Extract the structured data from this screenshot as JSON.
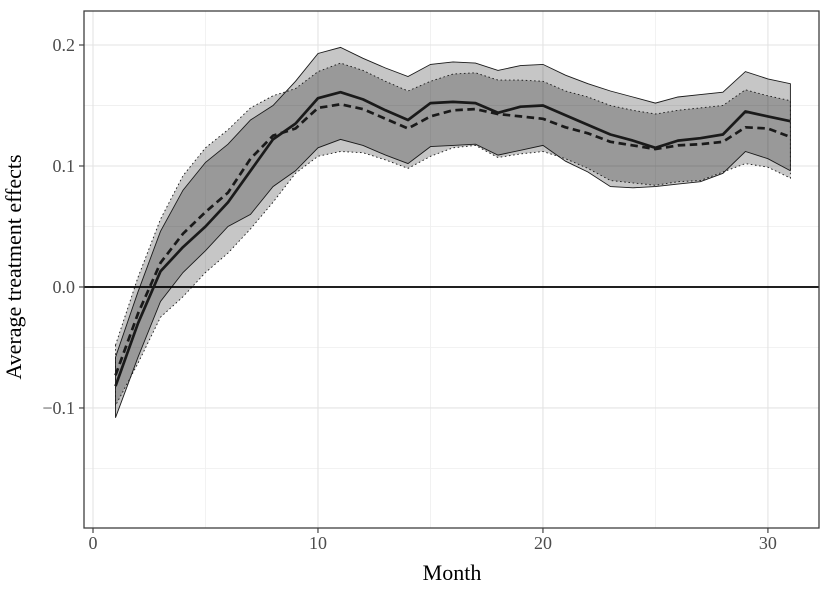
{
  "figure": {
    "kind": "statistical-line-chart",
    "background": "#ffffff"
  },
  "chart_data": {
    "type": "line",
    "title": "",
    "xlabel": "Month",
    "ylabel": "Average treatment effects",
    "legend": "none",
    "grid": true,
    "x": [
      1,
      2,
      3,
      4,
      5,
      6,
      7,
      8,
      9,
      10,
      11,
      12,
      13,
      14,
      15,
      16,
      17,
      18,
      19,
      20,
      21,
      22,
      23,
      24,
      25,
      26,
      27,
      28,
      29,
      30,
      31
    ],
    "series": [
      {
        "name": "att-estimate-solid",
        "line_style": "solid",
        "color": "#1a1a1a",
        "values": [
          -0.082,
          -0.03,
          0.013,
          0.033,
          0.05,
          0.07,
          0.096,
          0.122,
          0.135,
          0.156,
          0.161,
          0.155,
          0.146,
          0.138,
          0.152,
          0.153,
          0.152,
          0.144,
          0.149,
          0.15,
          0.142,
          0.134,
          0.126,
          0.121,
          0.115,
          0.121,
          0.123,
          0.126,
          0.145,
          0.141,
          0.137
        ],
        "band": {
          "edge_style": "solid",
          "upper": [
            -0.058,
            -0.004,
            0.046,
            0.08,
            0.103,
            0.118,
            0.138,
            0.15,
            0.17,
            0.193,
            0.198,
            0.189,
            0.181,
            0.174,
            0.184,
            0.186,
            0.185,
            0.179,
            0.183,
            0.184,
            0.175,
            0.168,
            0.162,
            0.157,
            0.152,
            0.157,
            0.159,
            0.161,
            0.178,
            0.172,
            0.168
          ],
          "lower": [
            -0.108,
            -0.058,
            -0.012,
            0.012,
            0.03,
            0.05,
            0.06,
            0.083,
            0.096,
            0.115,
            0.122,
            0.117,
            0.109,
            0.102,
            0.116,
            0.117,
            0.118,
            0.109,
            0.113,
            0.117,
            0.104,
            0.095,
            0.083,
            0.082,
            0.083,
            0.085,
            0.087,
            0.094,
            0.112,
            0.106,
            0.096
          ]
        }
      },
      {
        "name": "att-estimate-dashed",
        "line_style": "dashed",
        "color": "#1a1a1a",
        "values": [
          -0.073,
          -0.022,
          0.02,
          0.044,
          0.062,
          0.078,
          0.106,
          0.125,
          0.131,
          0.148,
          0.151,
          0.147,
          0.139,
          0.131,
          0.141,
          0.146,
          0.147,
          0.143,
          0.141,
          0.139,
          0.132,
          0.127,
          0.12,
          0.117,
          0.114,
          0.117,
          0.118,
          0.12,
          0.132,
          0.131,
          0.124
        ],
        "band": {
          "edge_style": "dotted",
          "upper": [
            -0.048,
            0.008,
            0.056,
            0.092,
            0.115,
            0.13,
            0.148,
            0.158,
            0.164,
            0.178,
            0.185,
            0.179,
            0.17,
            0.162,
            0.17,
            0.176,
            0.177,
            0.171,
            0.171,
            0.17,
            0.162,
            0.157,
            0.15,
            0.146,
            0.143,
            0.146,
            0.148,
            0.15,
            0.163,
            0.158,
            0.154
          ],
          "lower": [
            -0.098,
            -0.063,
            -0.025,
            -0.008,
            0.012,
            0.028,
            0.048,
            0.07,
            0.094,
            0.108,
            0.112,
            0.111,
            0.105,
            0.098,
            0.108,
            0.115,
            0.117,
            0.107,
            0.11,
            0.112,
            0.106,
            0.098,
            0.088,
            0.086,
            0.084,
            0.087,
            0.088,
            0.095,
            0.102,
            0.099,
            0.09
          ]
        }
      }
    ],
    "reference_line_y": 0,
    "xlim": [
      -0.4,
      32.27
    ],
    "ylim": [
      -0.1992,
      0.2281
    ],
    "x_ticks": [
      0,
      10,
      20,
      30
    ],
    "x_tick_labels": [
      "0",
      "10",
      "20",
      "30"
    ],
    "x_minor_ticks": [
      5,
      15,
      25
    ],
    "y_ticks": [
      -0.1,
      0.0,
      0.1,
      0.2
    ],
    "y_tick_labels": [
      "−0.1",
      "0.0",
      "0.1",
      "0.2"
    ],
    "y_minor_ticks": [
      -0.15,
      -0.05,
      0.05,
      0.15
    ],
    "colors": {
      "band_fill": "rgba(0,0,0,0.225)",
      "band_edge": "#1a1a1a",
      "line": "#1a1a1a",
      "zero_line": "#000000",
      "grid_major": "#e3e3e3",
      "grid_minor": "#f0f0f0",
      "panel_border": "#3f3f3f",
      "tick_mark": "#333333",
      "tick_label": "#4d4d4d",
      "axis_title": "#000000"
    }
  }
}
